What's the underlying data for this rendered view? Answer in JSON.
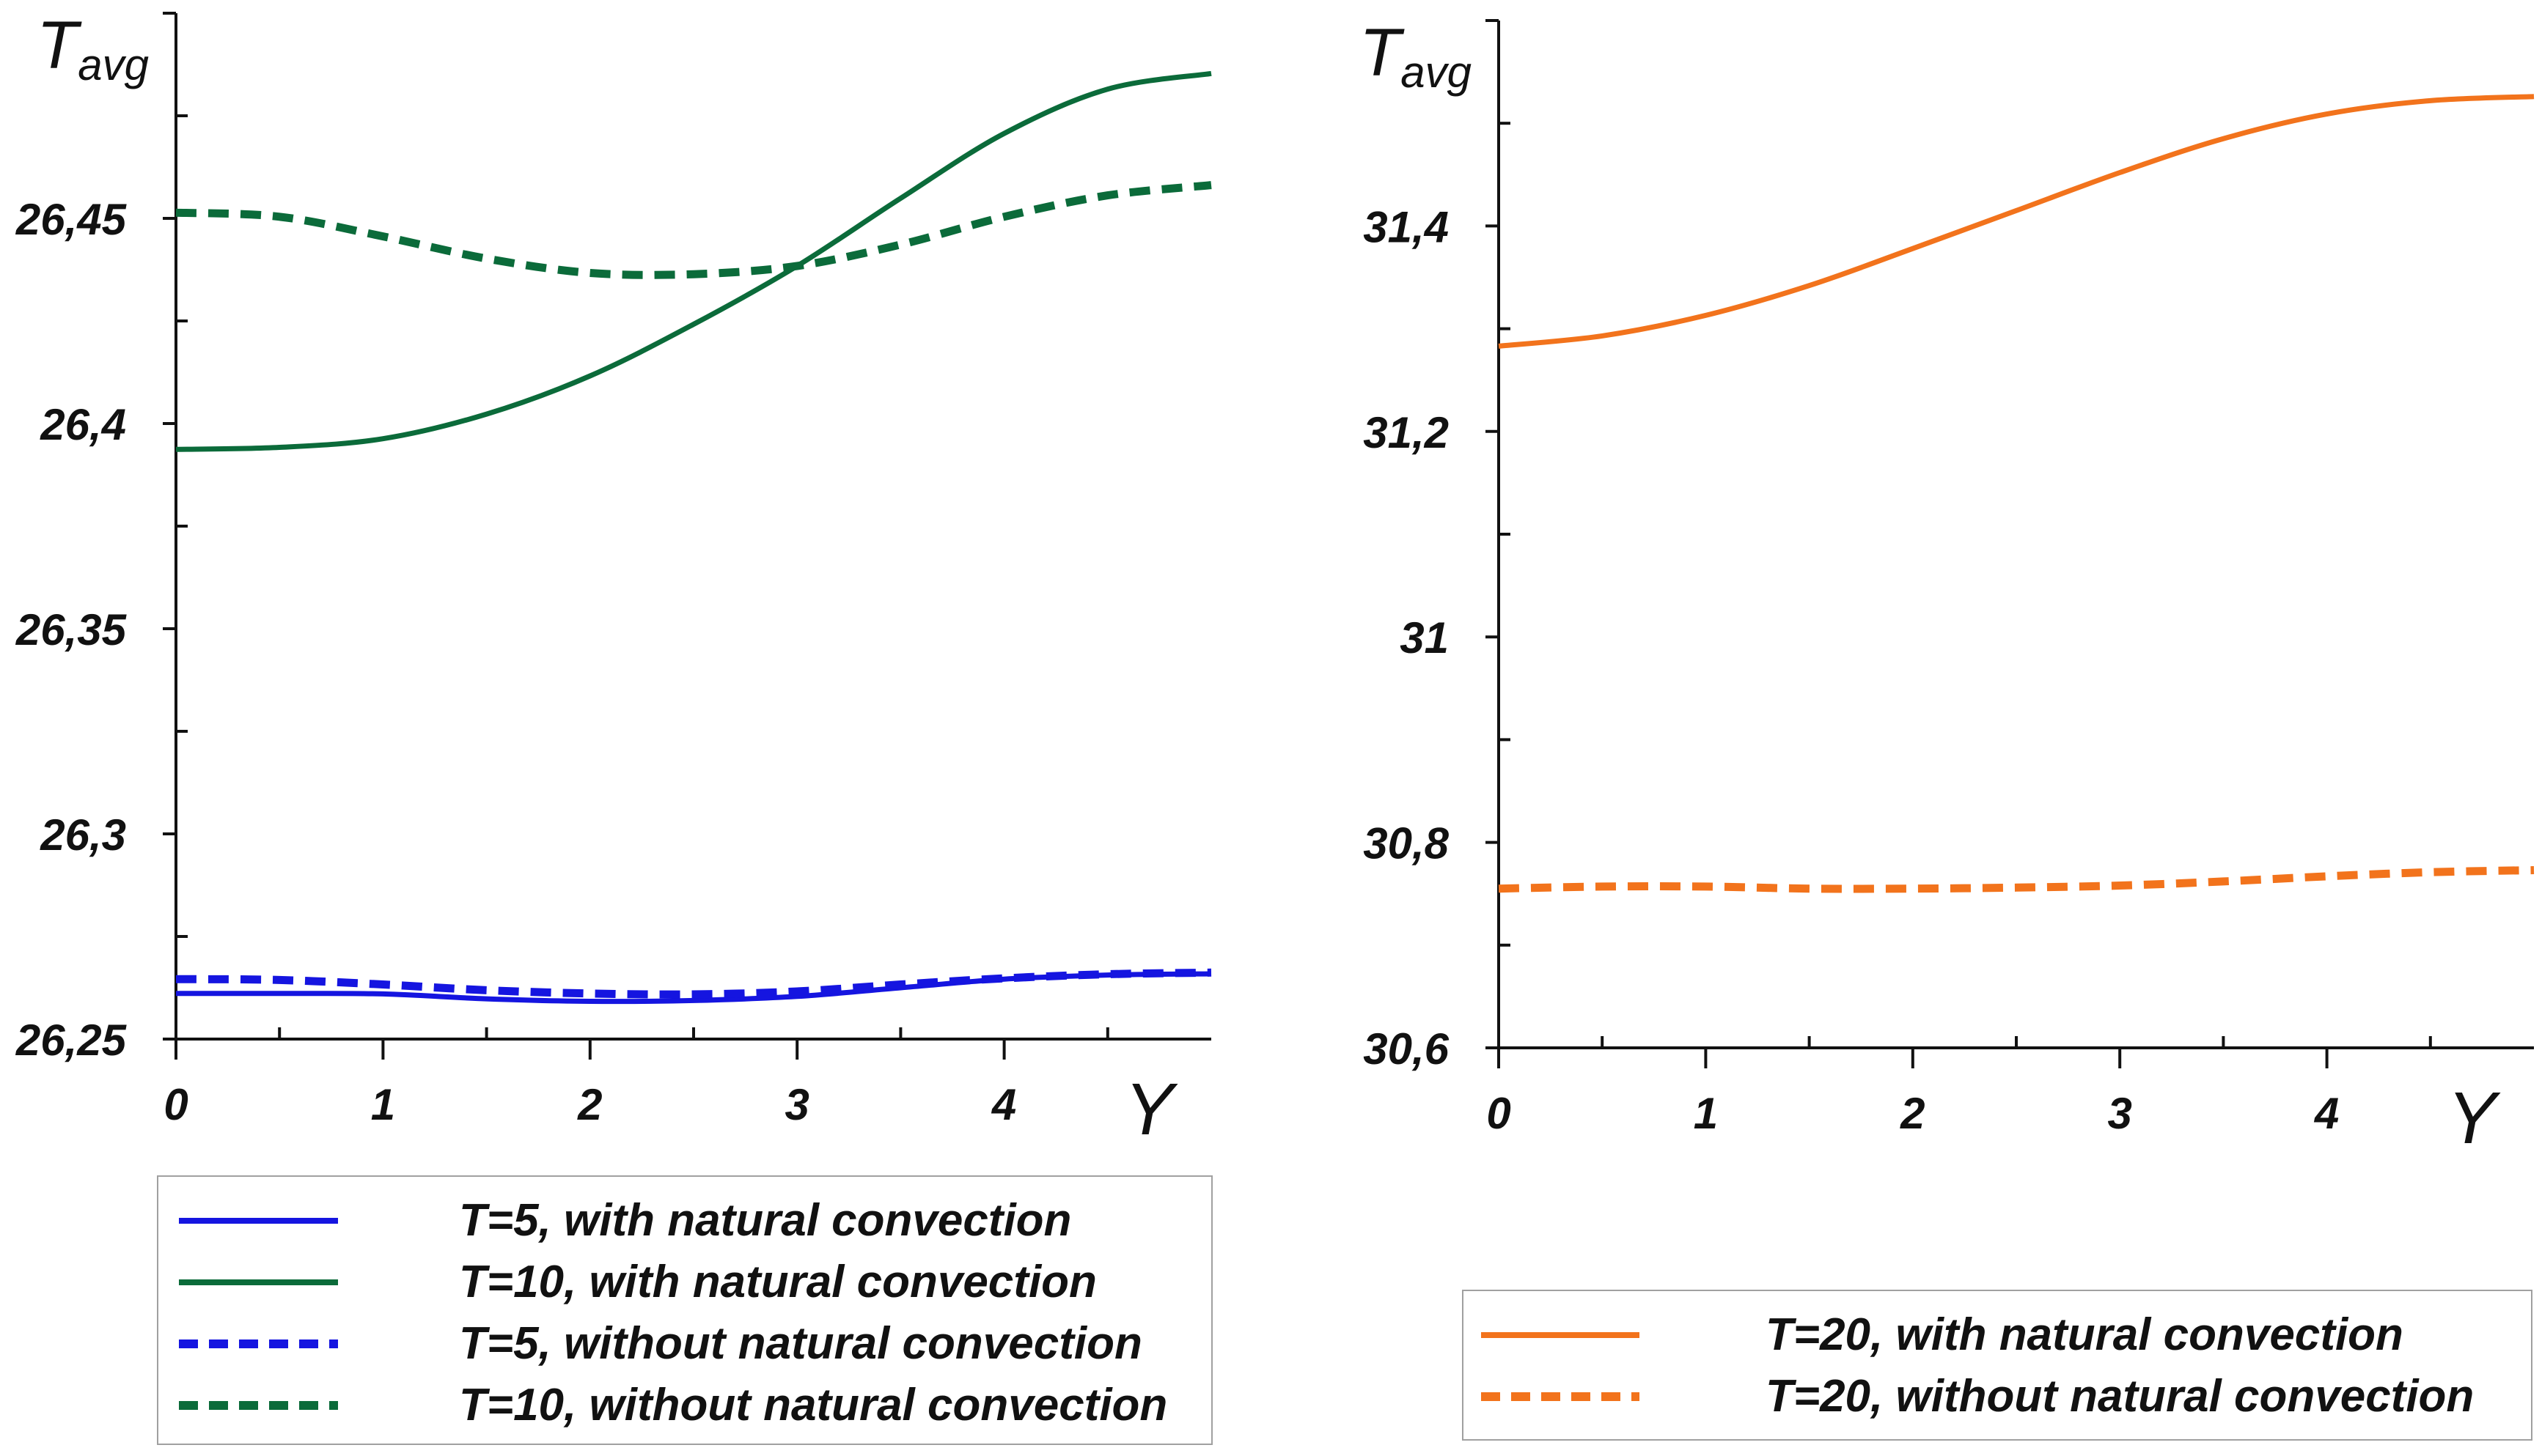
{
  "chart_data": [
    {
      "type": "line",
      "ylabel_main": "T",
      "ylabel_sub": "avg",
      "xlabel": "Y",
      "ylim": [
        26.25,
        26.5
      ],
      "xlim": [
        0,
        5
      ],
      "yticks": [
        26.25,
        26.3,
        26.35,
        26.4,
        26.45
      ],
      "ytick_labels": [
        "26,25",
        "26,3",
        "26,35",
        "26,4",
        "26,45"
      ],
      "xticks": [
        0,
        1,
        2,
        3,
        4
      ],
      "xtick_labels": [
        "0",
        "1",
        "2",
        "3",
        "4"
      ],
      "series": [
        {
          "name": "T=5, with natural convection",
          "color": "#1515e0",
          "dashed": false,
          "x": [
            0,
            0.5,
            1,
            1.5,
            2,
            2.5,
            3,
            3.5,
            4,
            4.5,
            5
          ],
          "y": [
            26.2611,
            26.2611,
            26.261,
            26.2598,
            26.2592,
            26.2594,
            26.2604,
            26.2625,
            26.2646,
            26.2656,
            26.2659
          ]
        },
        {
          "name": "T=10, with natural convection",
          "color": "#0b6b3a",
          "dashed": false,
          "x": [
            0,
            0.5,
            1,
            1.5,
            2,
            2.5,
            3,
            3.5,
            4,
            4.5,
            5
          ],
          "y": [
            26.3937,
            26.3942,
            26.3963,
            26.4023,
            26.4116,
            26.4242,
            26.4384,
            26.4549,
            26.4707,
            26.4815,
            26.4853
          ]
        },
        {
          "name": "T=5, without natural convection",
          "color": "#1515e0",
          "dashed": true,
          "x": [
            0,
            0.5,
            1,
            1.5,
            2,
            2.5,
            3,
            3.5,
            4,
            4.5,
            5
          ],
          "y": [
            26.2646,
            26.2644,
            26.2633,
            26.2619,
            26.2611,
            26.2609,
            26.2616,
            26.2633,
            26.2648,
            26.2658,
            26.2662
          ]
        },
        {
          "name": "T=10, without natural convection",
          "color": "#0b6b3a",
          "dashed": true,
          "x": [
            0,
            0.5,
            1,
            1.5,
            2,
            2.5,
            3,
            3.5,
            4,
            4.5,
            5
          ],
          "y": [
            26.4514,
            26.4504,
            26.4456,
            26.4402,
            26.4367,
            26.4364,
            26.4384,
            26.4436,
            26.4504,
            26.4556,
            26.4581
          ]
        }
      ]
    },
    {
      "type": "line",
      "ylabel_main": "T",
      "ylabel_sub": "avg",
      "xlabel": "Y",
      "ylim": [
        30.6,
        31.6
      ],
      "xlim": [
        0,
        5
      ],
      "yticks": [
        30.6,
        30.8,
        31,
        31.2,
        31.4
      ],
      "ytick_labels": [
        "30,6",
        "30,8",
        "31",
        "31,2",
        "31,4"
      ],
      "xticks": [
        0,
        1,
        2,
        3,
        4
      ],
      "xtick_labels": [
        "0",
        "1",
        "2",
        "3",
        "4"
      ],
      "series": [
        {
          "name": "T=20, with natural convection",
          "color": "#f2731c",
          "dashed": false,
          "x": [
            0,
            0.5,
            1,
            1.5,
            2,
            2.5,
            3,
            3.5,
            4,
            4.5,
            5
          ],
          "y": [
            31.283,
            31.293,
            31.313,
            31.342,
            31.378,
            31.415,
            31.452,
            31.485,
            31.509,
            31.522,
            31.526
          ]
        },
        {
          "name": "T=20, without natural convection",
          "color": "#f2731c",
          "dashed": true,
          "x": [
            0,
            0.5,
            1,
            1.5,
            2,
            2.5,
            3,
            3.5,
            4,
            4.5,
            5
          ],
          "y": [
            30.755,
            30.757,
            30.757,
            30.755,
            30.755,
            30.756,
            30.758,
            30.762,
            30.767,
            30.771,
            30.773
          ]
        }
      ]
    }
  ]
}
